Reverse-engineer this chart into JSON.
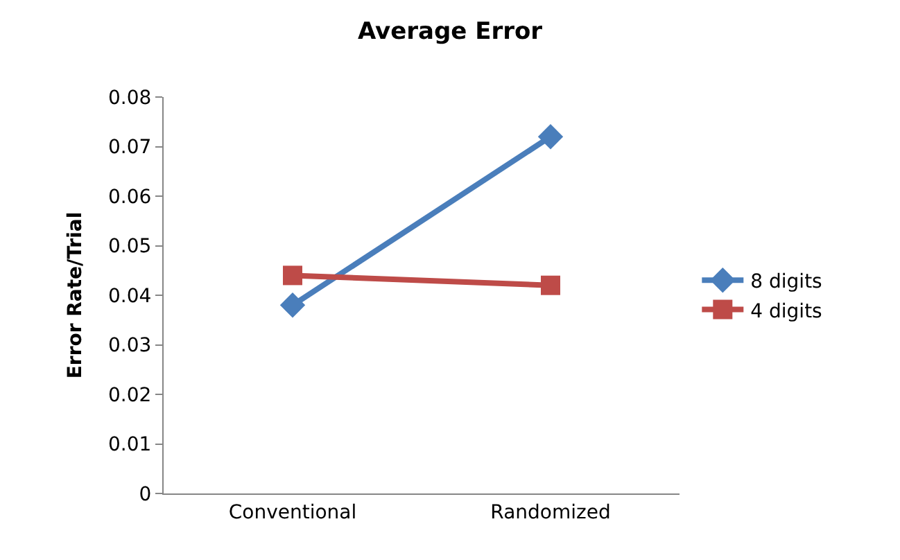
{
  "chart_data": {
    "type": "line",
    "title": "Average Error",
    "ylabel": "Error Rate/Trial",
    "categories": [
      "Conventional",
      "Randomized"
    ],
    "series": [
      {
        "name": "8 digits",
        "color": "#4a7ebb",
        "values": [
          0.038,
          0.072
        ],
        "marker": "diamond"
      },
      {
        "name": "4 digits",
        "color": "#be4b48",
        "values": [
          0.044,
          0.042
        ],
        "marker": "square"
      }
    ],
    "ylim": [
      0,
      0.08
    ],
    "yticks": [
      0,
      0.01,
      0.02,
      0.03,
      0.04,
      0.05,
      0.06,
      0.07,
      0.08
    ],
    "grid": false,
    "legend": "right",
    "line_style": "solid"
  }
}
